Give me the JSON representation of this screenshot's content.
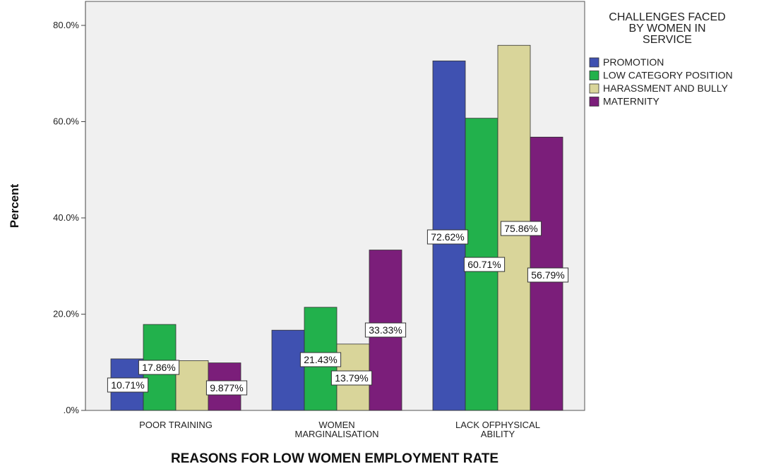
{
  "chart_data": {
    "type": "bar",
    "title": "",
    "xlabel": "REASONS FOR LOW WOMEN EMPLOYMENT RATE",
    "ylabel": "Percent",
    "ylim": [
      0,
      80
    ],
    "yticks": [
      0,
      20,
      40,
      60,
      80
    ],
    "ytick_labels": [
      ".0%",
      "20.0%",
      "40.0%",
      "60.0%",
      "80.0%"
    ],
    "grid": false,
    "categories": [
      [
        "POOR TRAINING"
      ],
      [
        "WOMEN",
        "MARGINALISATION"
      ],
      [
        "LACK OFPHYSICAL",
        "ABILITY"
      ]
    ],
    "legend": {
      "title": [
        "CHALLENGES FACED",
        "BY WOMEN IN",
        "SERVICE"
      ],
      "placement": "top-right, outside plot"
    },
    "series": [
      {
        "name": "PROMOTION",
        "color": "#3f51b1",
        "values": [
          10.71,
          16.67,
          72.62
        ],
        "labels": [
          "10.71%",
          "",
          "72.62%"
        ]
      },
      {
        "name": "LOW CATEGORY POSITION",
        "color": "#22b14c",
        "values": [
          17.86,
          21.43,
          60.71
        ],
        "labels": [
          "17.86%",
          "21.43%",
          "60.71%"
        ]
      },
      {
        "name": "HARASSMENT AND BULLY",
        "color": "#d9d59a",
        "values": [
          10.34,
          13.79,
          75.86
        ],
        "labels": [
          "",
          "13.79%",
          "75.86%"
        ]
      },
      {
        "name": "MATERNITY",
        "color": "#7b1e7a",
        "values": [
          9.877,
          33.33,
          56.79
        ],
        "labels": [
          "9.877%",
          "33.33%",
          "56.79%"
        ]
      }
    ]
  }
}
